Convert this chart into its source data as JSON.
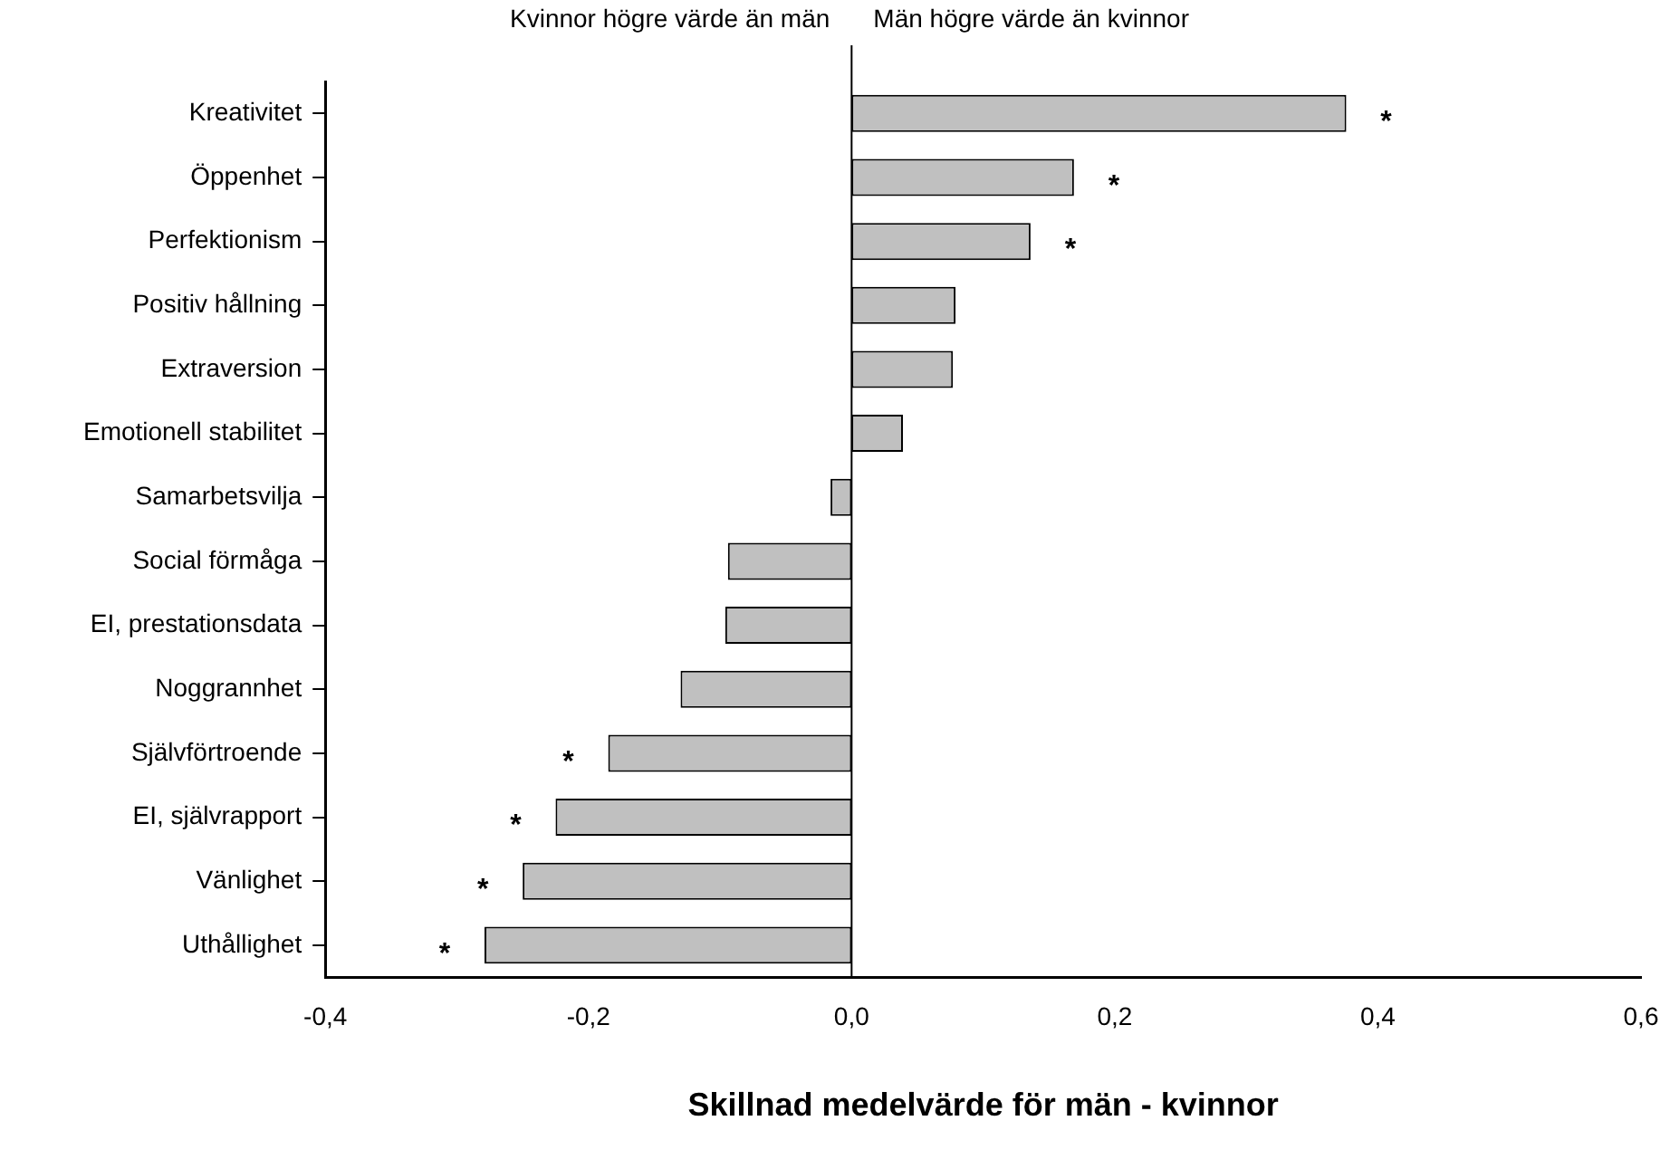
{
  "chart_data": {
    "type": "bar",
    "orientation": "horizontal",
    "xlabel": "Skillnad medelvärde för män - kvinnor",
    "categories": [
      "Kreativitet",
      "Öppenhet",
      "Perfektionism",
      "Positiv hållning",
      "Extraversion",
      "Emotionell stabilitet",
      "Samarbetsvilja",
      "Social förmåga",
      "EI, prestationsdata",
      "Noggrannhet",
      "Självförtroende",
      "EI, självrapport",
      "Vänlighet",
      "Uthållighet"
    ],
    "values": [
      0.376,
      0.169,
      0.136,
      0.079,
      0.077,
      0.039,
      -0.016,
      -0.094,
      -0.096,
      -0.13,
      -0.185,
      -0.225,
      -0.25,
      -0.279
    ],
    "color": "#c0c0c0",
    "xlim": [
      -0.4,
      0.6
    ],
    "xticks": [
      {
        "value": -0.4,
        "label": "-0,4"
      },
      {
        "value": -0.2,
        "label": "-0,2"
      },
      {
        "value": 0,
        "label": "0,0"
      },
      {
        "value": 0.2,
        "label": "0,2"
      },
      {
        "value": 0.4,
        "label": "0,4"
      },
      {
        "value": 0.6,
        "label": "0,6"
      }
    ],
    "ref_lines": [
      {
        "axis": "x",
        "value": 0,
        "color": "#000000"
      }
    ],
    "annotations": [
      "Kvinnor högre värde än män",
      "Män högre värde än kvinnor",
      {
        "text": "*",
        "x": 0.376,
        "y": "Kreativitet"
      },
      {
        "text": "*",
        "x": 0.169,
        "y": "Öppenhet"
      },
      {
        "text": "*",
        "x": 0.136,
        "y": "Perfektionism"
      },
      {
        "text": "*",
        "x": -0.185,
        "y": "Självförtroende"
      },
      {
        "text": "*",
        "x": -0.225,
        "y": "EI, självrapport"
      },
      {
        "text": "*",
        "x": -0.25,
        "y": "Vänlighet"
      },
      {
        "text": "*",
        "x": -0.279,
        "y": "Uthållighet"
      }
    ],
    "grid": false,
    "legend": false
  }
}
